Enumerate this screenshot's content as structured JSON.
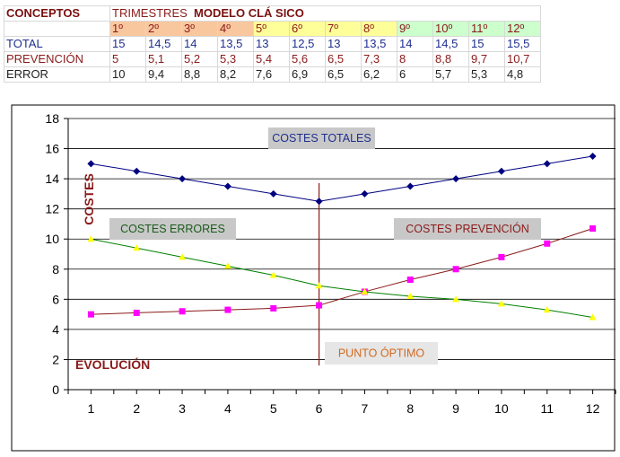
{
  "table": {
    "header_label": "CONCEPTOS",
    "trimestres": "TRIMESTRES",
    "modelo": "MODELO CLÁ SICO",
    "quarters": [
      "1º",
      "2º",
      "3º",
      "4º",
      "5º",
      "6º",
      "7º",
      "8º",
      "9º",
      "10º",
      "11º",
      "12º"
    ],
    "quarter_colors": [
      "#f9c79d",
      "#f9c79d",
      "#f9c79d",
      "#f9c79d",
      "#ffff99",
      "#ffff99",
      "#ffff99",
      "#ffff99",
      "#ccffcc",
      "#ccffcc",
      "#ccffcc",
      "#ccffcc"
    ],
    "rows": [
      {
        "label": "TOTAL",
        "values": [
          "15",
          "14,5",
          "14",
          "13,5",
          "13",
          "12,5",
          "13",
          "13,5",
          "14",
          "14,5",
          "15",
          "15,5"
        ]
      },
      {
        "label": "PREVENCIÓN",
        "values": [
          "5",
          "5,1",
          "5,2",
          "5,3",
          "5,4",
          "5,6",
          "6,5",
          "7,3",
          "8",
          "8,8",
          "9,7",
          "10,7"
        ]
      },
      {
        "label": "ERROR",
        "values": [
          "10",
          "9,4",
          "8,8",
          "8,2",
          "7,6",
          "6,9",
          "6,5",
          "6,2",
          "6",
          "5,7",
          "5,3",
          "4,8"
        ]
      }
    ]
  },
  "chart_data": {
    "type": "line",
    "x": [
      1,
      2,
      3,
      4,
      5,
      6,
      7,
      8,
      9,
      10,
      11,
      12
    ],
    "ylim": [
      0,
      18
    ],
    "yticks": [
      0,
      2,
      4,
      6,
      8,
      10,
      12,
      14,
      16,
      18
    ],
    "grid": true,
    "ylabel": "COSTES",
    "xlabel": "EVOLUCIÓN",
    "series": [
      {
        "name": "COSTES TOTALES",
        "color": "#000080",
        "marker": "diamond",
        "values": [
          15,
          14.5,
          14,
          13.5,
          13,
          12.5,
          13,
          13.5,
          14,
          14.5,
          15,
          15.5
        ]
      },
      {
        "name": "COSTES PREVENCIÓN",
        "color": "#ff00ff",
        "marker": "square",
        "line_color": "#8b1a1a",
        "values": [
          5,
          5.1,
          5.2,
          5.3,
          5.4,
          5.6,
          6.5,
          7.3,
          8,
          8.8,
          9.7,
          10.7
        ]
      },
      {
        "name": "COSTES ERRORES",
        "color": "#ffff00",
        "marker": "triangle",
        "line_color": "#008000",
        "values": [
          10,
          9.4,
          8.8,
          8.2,
          7.6,
          6.9,
          6.5,
          6.2,
          6,
          5.7,
          5.3,
          4.8
        ]
      }
    ],
    "annotations": [
      {
        "text": "COSTES TOTALES",
        "color": "#1f2f8f"
      },
      {
        "text": "COSTES ERRORES",
        "color": "#1a5a1a"
      },
      {
        "text": "COSTES PREVENCIÓN",
        "color": "#8b1a1a"
      },
      {
        "text": "PUNTO ÓPTIMO",
        "color": "#d2691e"
      }
    ],
    "optimum_x": 6
  }
}
